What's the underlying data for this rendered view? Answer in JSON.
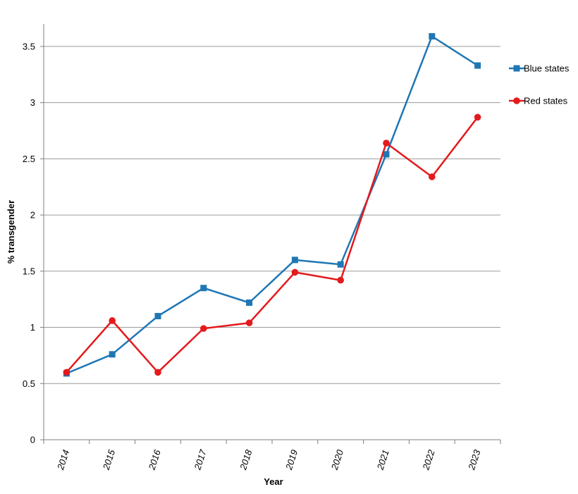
{
  "chart_data": {
    "type": "line",
    "title": "",
    "xlabel": "Year",
    "ylabel": "% transgender",
    "categories": [
      "2014",
      "2015",
      "2016",
      "2017",
      "2018",
      "2019",
      "2020",
      "2021",
      "2022",
      "2023"
    ],
    "yticks": [
      "0",
      "0.5",
      "1",
      "1.5",
      "2",
      "2.5",
      "3",
      "3.5"
    ],
    "ylim": [
      0,
      3.7
    ],
    "grid": true,
    "legend_position": "right",
    "series": [
      {
        "name": "Blue states",
        "color": "#1F77B4",
        "marker": "square",
        "values": [
          0.59,
          0.76,
          1.1,
          1.35,
          1.22,
          1.6,
          1.56,
          2.54,
          3.59,
          3.33
        ]
      },
      {
        "name": "Red states",
        "color": "#E41A1C",
        "marker": "circle",
        "values": [
          0.6,
          1.06,
          0.6,
          0.99,
          1.04,
          1.49,
          1.42,
          2.64,
          2.34,
          2.87
        ]
      }
    ]
  }
}
